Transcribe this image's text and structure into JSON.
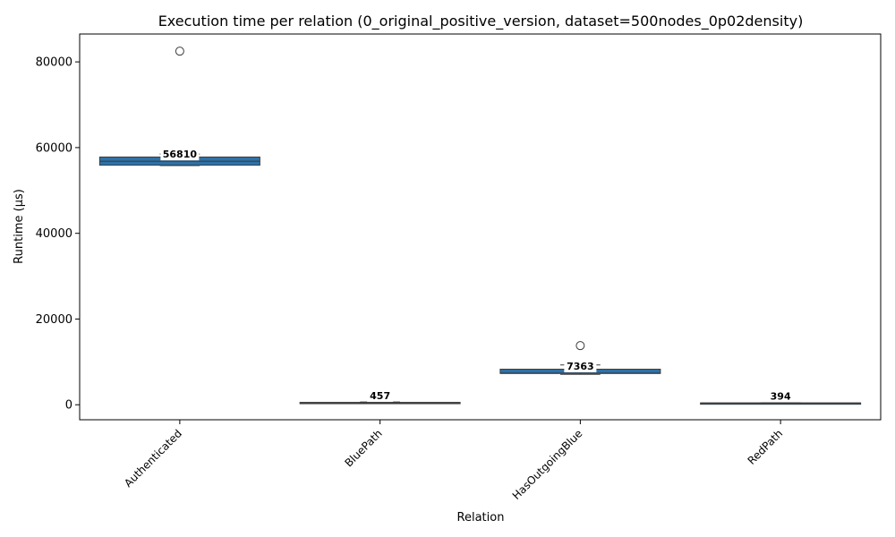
{
  "chart_data": {
    "type": "box",
    "title": "Execution time per relation (0_original_positive_version, dataset=500nodes_0p02density)",
    "xlabel": "Relation",
    "ylabel": "Runtime (µs)",
    "ylim": [
      -3500,
      86500
    ],
    "yticks": [
      0,
      20000,
      40000,
      60000,
      80000
    ],
    "grid": false,
    "categories": [
      "Authenticated",
      "BluePath",
      "HasOutgoingBlue",
      "RedPath"
    ],
    "boxes": [
      {
        "category": "Authenticated",
        "whisker_low": 55800,
        "q1": 55900,
        "median": 56810,
        "q3": 57800,
        "whisker_high": 58500,
        "outliers": [
          82500
        ],
        "median_label": "56810"
      },
      {
        "category": "BluePath",
        "whisker_low": 380,
        "q1": 400,
        "median": 457,
        "q3": 560,
        "whisker_high": 640,
        "outliers": [],
        "median_label": "457"
      },
      {
        "category": "HasOutgoingBlue",
        "whisker_low": 7100,
        "q1": 7300,
        "median": 7363,
        "q3": 8300,
        "whisker_high": 9300,
        "outliers": [
          13800
        ],
        "median_label": "7363"
      },
      {
        "category": "RedPath",
        "whisker_low": 340,
        "q1": 350,
        "median": 394,
        "q3": 430,
        "whisker_high": 460,
        "outliers": [],
        "median_label": "394"
      }
    ],
    "box_color": "#2e72a8",
    "edge_color": "#3d3d3d",
    "label_background": "#ffffff"
  }
}
